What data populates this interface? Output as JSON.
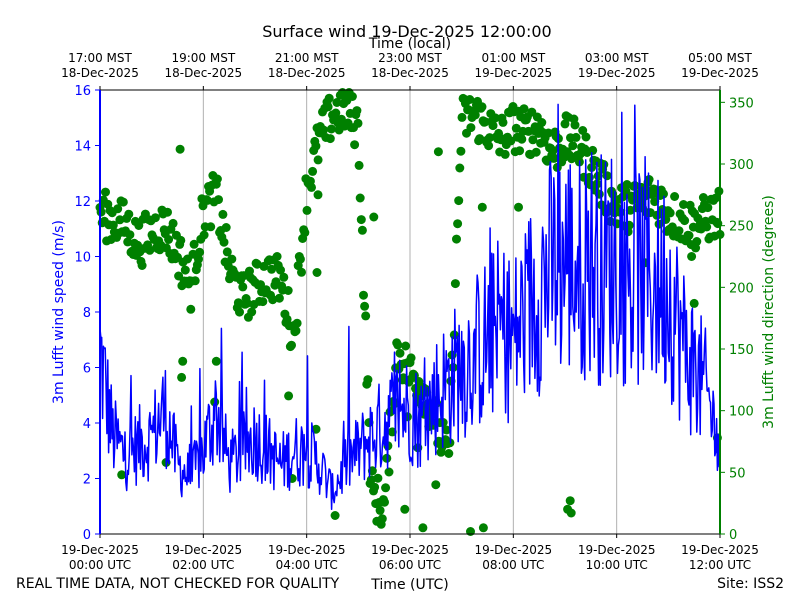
{
  "chart_data": {
    "type": "line+scatter",
    "title": "Surface wind 19-Dec-2025 12:00:00",
    "top_axis_label": "Time (local)",
    "xlabel": "Time (UTC)",
    "ylabel_left": "3m Lufft wind speed (m/s)",
    "ylabel_right": "3m Lufft wind direction (degrees)",
    "footer_left": "REAL TIME DATA, NOT CHECKED FOR QUALITY",
    "footer_right": "Site: ISS2",
    "x_range_hours": [
      0,
      12
    ],
    "ylim_left": [
      0,
      16
    ],
    "ylim_right": [
      0,
      360
    ],
    "grid": "vertical",
    "colors": {
      "speed": "#0000ff",
      "direction": "#008000",
      "grid": "#b0b0b0"
    },
    "bottom_ticks": [
      {
        "h": 0,
        "l1": "19-Dec-2025",
        "l2": "00:00 UTC"
      },
      {
        "h": 2,
        "l1": "19-Dec-2025",
        "l2": "02:00 UTC"
      },
      {
        "h": 4,
        "l1": "19-Dec-2025",
        "l2": "04:00 UTC"
      },
      {
        "h": 6,
        "l1": "19-Dec-2025",
        "l2": "06:00 UTC"
      },
      {
        "h": 8,
        "l1": "19-Dec-2025",
        "l2": "08:00 UTC"
      },
      {
        "h": 10,
        "l1": "19-Dec-2025",
        "l2": "10:00 UTC"
      },
      {
        "h": 12,
        "l1": "19-Dec-2025",
        "l2": "12:00 UTC"
      }
    ],
    "top_ticks": [
      {
        "h": 0,
        "l1": "17:00 MST",
        "l2": "18-Dec-2025"
      },
      {
        "h": 2,
        "l1": "19:00 MST",
        "l2": "18-Dec-2025"
      },
      {
        "h": 4,
        "l1": "21:00 MST",
        "l2": "18-Dec-2025"
      },
      {
        "h": 6,
        "l1": "23:00 MST",
        "l2": "18-Dec-2025"
      },
      {
        "h": 8,
        "l1": "01:00 MST",
        "l2": "19-Dec-2025"
      },
      {
        "h": 10,
        "l1": "03:00 MST",
        "l2": "19-Dec-2025"
      },
      {
        "h": 12,
        "l1": "05:00 MST",
        "l2": "19-Dec-2025"
      }
    ],
    "left_ticks": [
      0,
      2,
      4,
      6,
      8,
      10,
      12,
      14,
      16
    ],
    "right_ticks": [
      0,
      50,
      100,
      150,
      200,
      250,
      300,
      350
    ],
    "speed_series": {
      "name": "3m Lufft wind speed",
      "x_hours": [
        0,
        0.25,
        0.5,
        0.75,
        1,
        1.25,
        1.5,
        1.75,
        2,
        2.25,
        2.5,
        2.75,
        3,
        3.25,
        3.5,
        3.75,
        4,
        4.25,
        4.5,
        4.75,
        5,
        5.25,
        5.5,
        5.75,
        6,
        6.25,
        6.5,
        6.75,
        7,
        7.25,
        7.5,
        7.75,
        8,
        8.25,
        8.5,
        8.75,
        9,
        9.25,
        9.5,
        9.75,
        10,
        10.25,
        10.5,
        10.75,
        11,
        11.25,
        11.5,
        11.75,
        12
      ],
      "values": [
        6.5,
        3.5,
        2.8,
        3.2,
        3.5,
        4.5,
        2.5,
        2.0,
        3.0,
        4.5,
        2.5,
        3.0,
        3.5,
        3.0,
        2.5,
        3.0,
        3.0,
        2.5,
        1.5,
        2.5,
        3.0,
        3.5,
        4.0,
        4.5,
        4.5,
        4.0,
        5.0,
        5.5,
        6.0,
        6.5,
        7.0,
        7.5,
        7.0,
        8.0,
        9.0,
        9.5,
        10.0,
        9.5,
        10.0,
        9.5,
        10.0,
        9.0,
        9.5,
        9.0,
        9.0,
        7.0,
        6.0,
        5.0,
        3.0
      ],
      "min": 0.5,
      "max": 16.0
    },
    "direction_series": {
      "name": "3m Lufft wind direction",
      "x_hours": [
        0,
        0.25,
        0.5,
        0.75,
        1,
        1.25,
        1.5,
        1.75,
        2,
        2.25,
        2.5,
        2.75,
        3,
        3.25,
        3.5,
        3.75,
        4,
        4.25,
        4.5,
        4.75,
        5,
        5.25,
        5.5,
        5.75,
        6,
        6.25,
        6.5,
        6.75,
        7,
        7.25,
        7.5,
        7.75,
        8,
        8.25,
        8.5,
        8.75,
        9,
        9.25,
        9.5,
        9.75,
        10,
        10.25,
        10.5,
        10.75,
        11,
        11.25,
        11.5,
        11.75,
        12
      ],
      "values": [
        260,
        255,
        250,
        235,
        245,
        250,
        230,
        200,
        260,
        275,
        215,
        190,
        200,
        210,
        205,
        160,
        280,
        320,
        340,
        345,
        330,
        35,
        20,
        150,
        130,
        120,
        90,
        60,
        335,
        340,
        330,
        320,
        330,
        325,
        330,
        310,
        320,
        315,
        300,
        280,
        265,
        265,
        270,
        275,
        260,
        255,
        250,
        255,
        260
      ]
    },
    "direction_outliers": [
      {
        "h": 0.42,
        "deg": 48
      },
      {
        "h": 1.28,
        "deg": 58
      },
      {
        "h": 1.55,
        "deg": 312
      },
      {
        "h": 1.6,
        "deg": 140
      },
      {
        "h": 1.58,
        "deg": 127
      },
      {
        "h": 2.22,
        "deg": 107
      },
      {
        "h": 2.25,
        "deg": 140
      },
      {
        "h": 3.65,
        "deg": 112
      },
      {
        "h": 3.72,
        "deg": 45
      },
      {
        "h": 4.18,
        "deg": 85
      },
      {
        "h": 4.2,
        "deg": 212
      },
      {
        "h": 4.22,
        "deg": 275
      },
      {
        "h": 4.55,
        "deg": 15
      },
      {
        "h": 5.3,
        "deg": 257
      },
      {
        "h": 5.9,
        "deg": 20
      },
      {
        "h": 5.95,
        "deg": 95
      },
      {
        "h": 6.15,
        "deg": 70
      },
      {
        "h": 6.25,
        "deg": 5
      },
      {
        "h": 6.5,
        "deg": 40
      },
      {
        "h": 6.55,
        "deg": 310
      },
      {
        "h": 7.17,
        "deg": 2
      },
      {
        "h": 7.42,
        "deg": 5
      },
      {
        "h": 7.4,
        "deg": 265
      },
      {
        "h": 8.1,
        "deg": 265
      },
      {
        "h": 9.05,
        "deg": 20
      },
      {
        "h": 9.1,
        "deg": 27
      },
      {
        "h": 9.12,
        "deg": 17
      },
      {
        "h": 10.55,
        "deg": 220
      },
      {
        "h": 11.45,
        "deg": 225
      },
      {
        "h": 11.5,
        "deg": 187
      },
      {
        "h": 11.95,
        "deg": 78
      }
    ]
  }
}
